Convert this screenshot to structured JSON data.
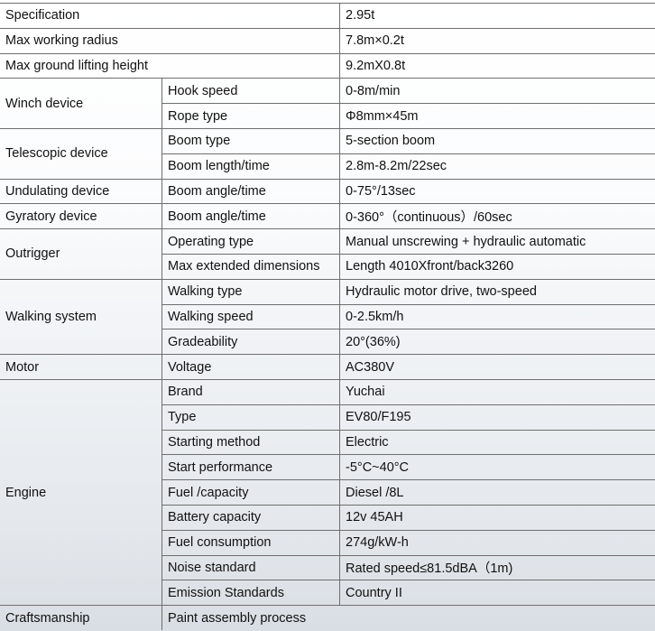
{
  "rows": [
    {
      "group": "Specification",
      "value": "2.95t"
    },
    {
      "group": "Max working radius",
      "value": "7.8m×0.2t"
    },
    {
      "group": "Max ground lifting height",
      "value": "9.2mX0.8t"
    },
    {
      "group": "Winch device",
      "items": [
        {
          "label": "Hook speed",
          "value": "0-8m/min"
        },
        {
          "label": "Rope type",
          "value": "Φ8mm×45m"
        }
      ]
    },
    {
      "group": "Telescopic device",
      "items": [
        {
          "label": "Boom type",
          "value": "5-section boom"
        },
        {
          "label": "Boom length/time",
          "value": "2.8m-8.2m/22sec"
        }
      ]
    },
    {
      "group": "Undulating device",
      "items": [
        {
          "label": "Boom angle/time",
          "value": "0-75°/13sec"
        }
      ]
    },
    {
      "group": "Gyratory device",
      "items": [
        {
          "label": "Boom angle/time",
          "value": "0-360°（continuous）/60sec"
        }
      ]
    },
    {
      "group": "Outrigger",
      "items": [
        {
          "label": "Operating type",
          "value": "Manual unscrewing + hydraulic automatic"
        },
        {
          "label": "Max extended dimensions",
          "value": "Length 4010Xfront/back3260"
        }
      ]
    },
    {
      "group": "Walking system",
      "items": [
        {
          "label": "Walking type",
          "value": "Hydraulic motor drive, two-speed"
        },
        {
          "label": "Walking speed",
          "value": "0-2.5km/h"
        },
        {
          "label": "Gradeability",
          "value": "20°(36%)"
        }
      ]
    },
    {
      "group": "Motor",
      "items": [
        {
          "label": "Voltage",
          "value": "AC380V"
        }
      ]
    },
    {
      "group": "Engine",
      "items": [
        {
          "label": "Brand",
          "value": "Yuchai"
        },
        {
          "label": "Type",
          "value": "EV80/F195"
        },
        {
          "label": "Starting method",
          "value": "Electric"
        },
        {
          "label": "Start performance",
          "value": "-5°C~40°C"
        },
        {
          "label": "Fuel /capacity",
          "value": "Diesel /8L"
        },
        {
          "label": "Battery capacity",
          "value": "12v 45AH"
        },
        {
          "label": "Fuel consumption",
          "value": "274g/kW-h"
        },
        {
          "label": "Noise standard",
          "value": "Rated speed≤81.5dBA（1m)"
        },
        {
          "label": "Emission Standards",
          "value": "Country II"
        }
      ]
    },
    {
      "group": "Craftsmanship",
      "wide": "Paint assembly process"
    }
  ]
}
